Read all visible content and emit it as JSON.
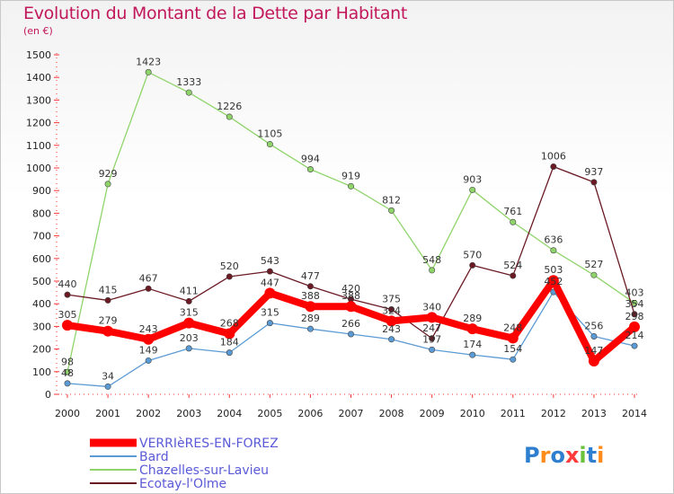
{
  "header": {
    "title": "Evolution du Montant de la Dette par Habitant",
    "subtitle": "(en €)"
  },
  "logo": {
    "text": "Proxiti",
    "icon": "proxiti-logo"
  },
  "chart_data": {
    "type": "line",
    "title": "Evolution du Montant de la Dette par Habitant",
    "ylabel": "(en €)",
    "xlabel": "",
    "ylim": [
      0,
      1500
    ],
    "yticks": [
      0,
      100,
      200,
      300,
      400,
      500,
      600,
      700,
      800,
      900,
      1000,
      1100,
      1200,
      1300,
      1400,
      1500
    ],
    "grid": false,
    "legend_position": "bottom-left",
    "categories": [
      "2000",
      "2001",
      "2002",
      "2003",
      "2004",
      "2005",
      "2006",
      "2007",
      "2008",
      "2009",
      "2010",
      "2011",
      "2012",
      "2013",
      "2014"
    ],
    "series": [
      {
        "name": "Bard",
        "color": "#5b9bd5",
        "values": [
          48,
          34,
          149,
          203,
          184,
          315,
          289,
          266,
          243,
          197,
          174,
          154,
          452,
          256,
          214
        ]
      },
      {
        "name": "Chazelles-sur-Lavieu",
        "color": "#8fd46a",
        "values": [
          98,
          929,
          1423,
          1333,
          1226,
          1105,
          994,
          919,
          812,
          548,
          903,
          761,
          636,
          527,
          403
        ]
      },
      {
        "name": "Ecotay-l'Olme",
        "color": "#6b1a24",
        "values": [
          440,
          415,
          467,
          411,
          520,
          543,
          477,
          420,
          375,
          247,
          570,
          524,
          1006,
          937,
          354
        ]
      },
      {
        "name": "VERRIèRES-EN-FOREZ",
        "color": "#ff0000",
        "values": [
          305,
          279,
          243,
          315,
          268,
          447,
          388,
          388,
          324,
          340,
          289,
          248,
          503,
          147,
          298
        ]
      }
    ],
    "legend_order": [
      "VERRIèRES-EN-FOREZ",
      "Bard",
      "Chazelles-sur-Lavieu",
      "Ecotay-l'Olme"
    ]
  }
}
